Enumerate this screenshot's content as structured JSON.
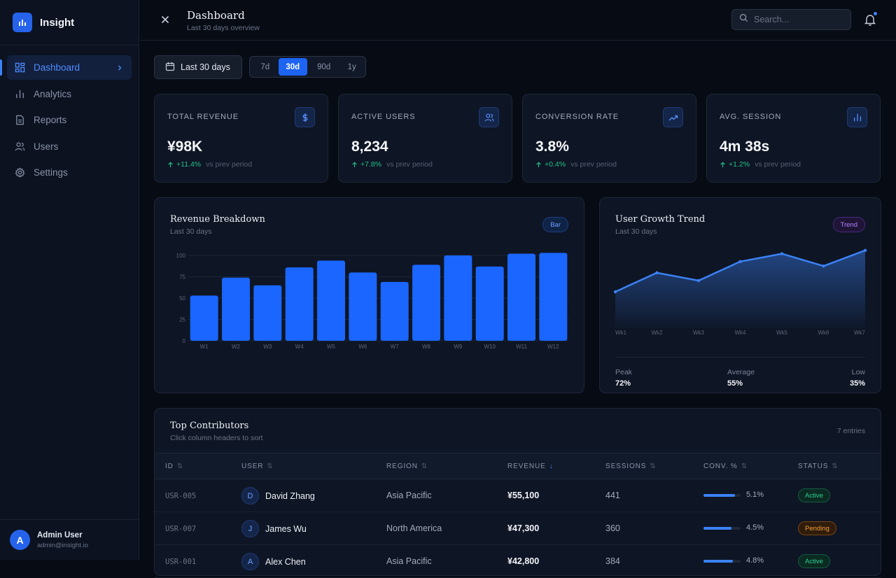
{
  "app": {
    "name": "Insight"
  },
  "sidebar": {
    "items": [
      {
        "label": "Dashboard",
        "icon": "grid-icon",
        "active": true
      },
      {
        "label": "Analytics",
        "icon": "bar-chart-icon"
      },
      {
        "label": "Reports",
        "icon": "document-icon"
      },
      {
        "label": "Users",
        "icon": "users-icon"
      },
      {
        "label": "Settings",
        "icon": "gear-icon"
      }
    ],
    "user": {
      "initial": "A",
      "name": "Admin User",
      "email": "admin@insight.io"
    }
  },
  "header": {
    "title": "Dashboard",
    "subtitle": "Last 30 days overview",
    "search_placeholder": "Search..."
  },
  "controls": {
    "date_label": "Last 30 days",
    "ranges": [
      "7d",
      "30d",
      "90d",
      "1y"
    ],
    "selected_range": "30d"
  },
  "kpis": [
    {
      "label": "TOTAL REVENUE",
      "value": "¥98K",
      "delta": "+11.4%",
      "compare": "vs prev period",
      "icon": "dollar-icon"
    },
    {
      "label": "ACTIVE USERS",
      "value": "8,234",
      "delta": "+7.8%",
      "compare": "vs prev period",
      "icon": "users-icon"
    },
    {
      "label": "CONVERSION RATE",
      "value": "3.8%",
      "delta": "+0.4%",
      "compare": "vs prev period",
      "icon": "trending-up-icon"
    },
    {
      "label": "AVG. SESSION",
      "value": "4m 38s",
      "delta": "+1.2%",
      "compare": "vs prev period",
      "icon": "bar-chart-icon"
    }
  ],
  "revenue_card": {
    "title": "Revenue Breakdown",
    "subtitle": "Last 30 days",
    "badge": "Bar"
  },
  "growth_card": {
    "title": "User Growth Trend",
    "subtitle": "Last 30 days",
    "badge": "Trend",
    "stats": [
      {
        "label": "Peak",
        "value": "72%"
      },
      {
        "label": "Average",
        "value": "55%"
      },
      {
        "label": "Low",
        "value": "35%"
      }
    ]
  },
  "chart_data": [
    {
      "type": "bar",
      "title": "Revenue Breakdown",
      "categories": [
        "W1",
        "W2",
        "W3",
        "W4",
        "W5",
        "W6",
        "W7",
        "W8",
        "W9",
        "W10",
        "W11",
        "W12"
      ],
      "values": [
        53,
        74,
        65,
        86,
        94,
        80,
        69,
        89,
        100,
        87,
        102,
        103
      ],
      "ylim": [
        0,
        100
      ],
      "yticks": [
        0,
        25,
        50,
        75,
        100
      ],
      "grid": true,
      "colors": {
        "bar": "#1a66ff"
      }
    },
    {
      "type": "area",
      "title": "User Growth Trend",
      "categories": [
        "Wk1",
        "Wk2",
        "Wk3",
        "Wk4",
        "Wk5",
        "Wk6",
        "Wk7"
      ],
      "values": [
        35,
        52,
        45,
        62,
        69,
        58,
        72
      ],
      "ylim": [
        0,
        85
      ],
      "colors": {
        "line": "#3b82f6"
      }
    }
  ],
  "table": {
    "title": "Top Contributors",
    "subtitle": "Click column headers to sort",
    "count": "7 entries",
    "columns": [
      "ID",
      "USER",
      "REGION",
      "REVENUE",
      "SESSIONS",
      "CONV. %",
      "STATUS"
    ],
    "sorted_column": "REVENUE",
    "rows": [
      {
        "id": "USR-005",
        "initial": "D",
        "user": "David Zhang",
        "region": "Asia Pacific",
        "revenue": "¥55,100",
        "sessions": "441",
        "conv": "5.1%",
        "conv_value": 5.1,
        "status": "Active"
      },
      {
        "id": "USR-007",
        "initial": "J",
        "user": "James Wu",
        "region": "North America",
        "revenue": "¥47,300",
        "sessions": "360",
        "conv": "4.5%",
        "conv_value": 4.5,
        "status": "Pending"
      },
      {
        "id": "USR-001",
        "initial": "A",
        "user": "Alex Chen",
        "region": "Asia Pacific",
        "revenue": "¥42,800",
        "sessions": "384",
        "conv": "4.8%",
        "conv_value": 4.8,
        "status": "Active"
      }
    ]
  }
}
